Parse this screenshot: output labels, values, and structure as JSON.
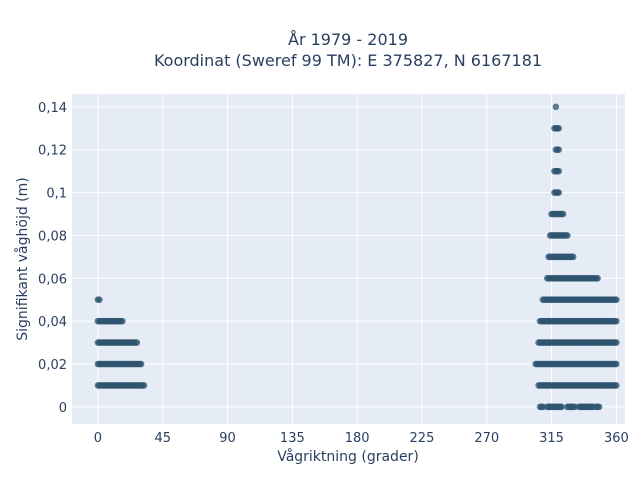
{
  "chart_data": {
    "type": "scatter",
    "title_line1": "År 1979 - 2019",
    "title_line2": "Koordinat (Sweref 99 TM): E 375827, N 6167181",
    "xlabel": "Vågriktning (grader)",
    "ylabel": "Signifikant våghöjd (m)",
    "xlim": [
      -18,
      366
    ],
    "ylim": [
      -0.008,
      0.146
    ],
    "x_ticks": [
      0,
      45,
      90,
      135,
      180,
      225,
      270,
      315,
      360
    ],
    "y_ticks": [
      0,
      0.02,
      0.04,
      0.06,
      0.08,
      0.1,
      0.12,
      0.14
    ],
    "y_tick_labels": [
      "0",
      "0,02",
      "0,04",
      "0,06",
      "0,08",
      "0,1",
      "0,12",
      "0,14"
    ],
    "x_tick_labels": [
      "0",
      "45",
      "90",
      "135",
      "180",
      "225",
      "270",
      "315",
      "360"
    ],
    "grid": true,
    "colors": {
      "point": "#2f5470",
      "plot_bg": "#e5ecf6",
      "grid": "#ffffff",
      "text": "#2a3f5f"
    },
    "bands": [
      {
        "y": 0.05,
        "ranges": [
          [
            0,
            1
          ]
        ]
      },
      {
        "y": 0.04,
        "ranges": [
          [
            0,
            17
          ]
        ]
      },
      {
        "y": 0.03,
        "ranges": [
          [
            0,
            27
          ]
        ]
      },
      {
        "y": 0.02,
        "ranges": [
          [
            0,
            30
          ]
        ]
      },
      {
        "y": 0.01,
        "ranges": [
          [
            0,
            32
          ]
        ]
      },
      {
        "y": 0.14,
        "ranges": [
          [
            318,
            318
          ]
        ]
      },
      {
        "y": 0.13,
        "ranges": [
          [
            317,
            320
          ]
        ]
      },
      {
        "y": 0.12,
        "ranges": [
          [
            318,
            320
          ]
        ]
      },
      {
        "y": 0.11,
        "ranges": [
          [
            317,
            320
          ]
        ]
      },
      {
        "y": 0.1,
        "ranges": [
          [
            317,
            320
          ]
        ]
      },
      {
        "y": 0.09,
        "ranges": [
          [
            315,
            323
          ]
        ]
      },
      {
        "y": 0.08,
        "ranges": [
          [
            314,
            326
          ]
        ]
      },
      {
        "y": 0.07,
        "ranges": [
          [
            313,
            330
          ]
        ]
      },
      {
        "y": 0.06,
        "ranges": [
          [
            312,
            347
          ]
        ]
      },
      {
        "y": 0.05,
        "ranges": [
          [
            309,
            360
          ]
        ]
      },
      {
        "y": 0.04,
        "ranges": [
          [
            307,
            360
          ]
        ]
      },
      {
        "y": 0.03,
        "ranges": [
          [
            306,
            360
          ]
        ]
      },
      {
        "y": 0.02,
        "ranges": [
          [
            304,
            360
          ]
        ]
      },
      {
        "y": 0.01,
        "ranges": [
          [
            306,
            360
          ]
        ]
      },
      {
        "y": 0,
        "ranges": [
          [
            307,
            309
          ],
          [
            312,
            322
          ],
          [
            326,
            331
          ],
          [
            334,
            344
          ],
          [
            346,
            348
          ]
        ]
      }
    ]
  }
}
